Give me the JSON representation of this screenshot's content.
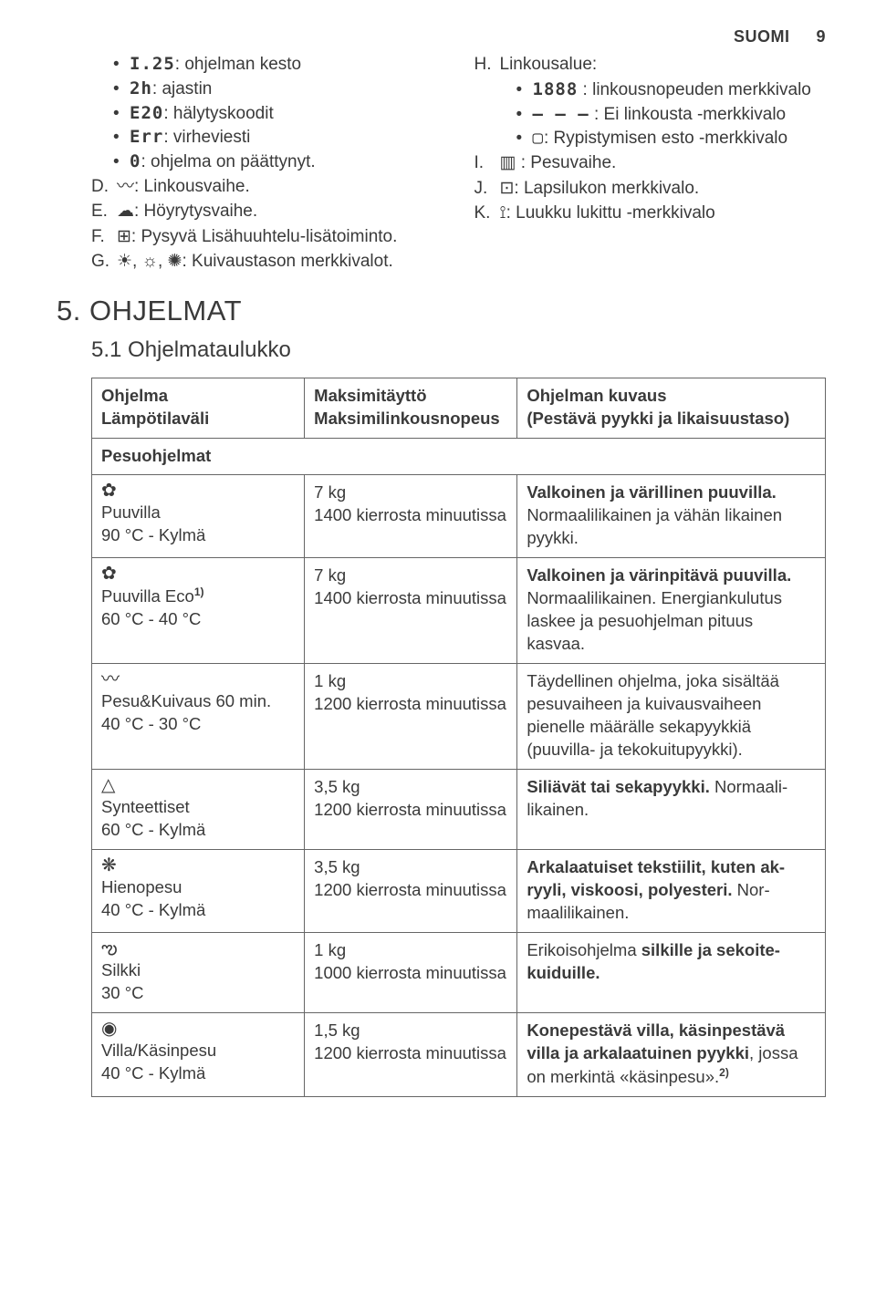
{
  "header": {
    "lang": "SUOMI",
    "page": "9"
  },
  "left_bullets": [
    {
      "icon": "I.25",
      "text": ": ohjelman kesto"
    },
    {
      "icon": "2h",
      "text": ": ajastin"
    },
    {
      "icon": "E20",
      "text": ": hälytyskoodit"
    },
    {
      "icon": "Err",
      "text": ": virheviesti"
    },
    {
      "icon": "0",
      "text": ": ohjelma on päättynyt."
    }
  ],
  "left_letters": {
    "D": {
      "icon": "〰",
      "text": ": Linkousvaihe."
    },
    "E": {
      "icon": "☁",
      "text": ": Höyrytysvaihe."
    },
    "F": {
      "icon": "⊞",
      "text": ": Pysyvä Lisähuuhtelu-lisätoiminto."
    },
    "G": {
      "icon": "☀, ☼, ✺",
      "text": ": Kuivaustason merkkivalot."
    }
  },
  "right_section": {
    "H": {
      "label": "Linkousalue:",
      "bullets": [
        {
          "icon": "1888",
          "text": " : linkousnopeuden merkkivalo"
        },
        {
          "icon": "– – –",
          "text": " : Ei linkousta -merkkivalo"
        },
        {
          "icon": "▢",
          "text": ": Rypistymisen esto -merkkivalo"
        }
      ]
    },
    "I": {
      "icon": "▥",
      "text": " : Pesuvaihe."
    },
    "J": {
      "icon": "⊡",
      "text": ": Lapsilukon merkkivalo."
    },
    "K": {
      "icon": "⟟",
      "text": ": Luukku lukittu -merkkivalo"
    }
  },
  "section_title": "5. OHJELMAT",
  "subsection_title": "5.1 Ohjelmataulukko",
  "table_headers": {
    "c1a": "Ohjelma",
    "c1b": "Lämpötilaväli",
    "c2a": "Maksimitäyttö",
    "c2b": "Maksimilinkousno­peus",
    "c3a": "Ohjelman kuvaus",
    "c3b": "(Pestävä pyykki ja likaisuustaso)"
  },
  "section_row": "Pesuohjelmat",
  "rows": [
    {
      "icon": "✿",
      "name": "Puuvilla",
      "temp": "90 °C - Kylmä",
      "cap": "7 kg\n1400 kierrosta mi­nuutissa",
      "desc_bold": "Valkoinen ja värillinen puuvilla.",
      "desc_rest": " Normaalilikainen ja vähän likainen pyykki."
    },
    {
      "icon": "✿",
      "name_html": "Puuvilla Eco<span class='sup'>1)</span>",
      "temp": "60 °C - 40 °C",
      "cap": "7 kg\n1400 kierrosta mi­nuutissa",
      "desc_bold": "Valkoinen ja värinpitävä puuvil­la.",
      "desc_rest": " Normaalilikainen. Energiankulu­tus laskee ja pesuohjelman pituus kasvaa."
    },
    {
      "icon": "〰",
      "name": "Pesu&Kuivaus 60 min.",
      "temp": "40 °C - 30 °C",
      "cap": "1 kg\n1200 kierrosta mi­nuutissa",
      "desc_plain": "Täydellinen ohjelma, joka sisältää pesuvaiheen ja kuivausvaiheen pienelle määrälle sekapyykkiä (puuvilla- ja tekokuitupyykki)."
    },
    {
      "icon": "△",
      "name": "Synteettiset",
      "temp": "60 °C - Kylmä",
      "cap": "3,5 kg\n1200 kierrosta mi­nuutissa",
      "desc_bold": "Siliävät tai sekapyykki.",
      "desc_rest": " Normaali­likainen."
    },
    {
      "icon": "❋",
      "name": "Hienopesu",
      "temp": "40 °C - Kylmä",
      "cap": "3,5 kg\n1200 kierrosta mi­nuutissa",
      "desc_bold": "Arkalaatuiset tekstiilit, kuten ak­ryyli, viskoosi, polyesteri.",
      "desc_rest": " Nor­maalilikainen."
    },
    {
      "icon": "ఌ",
      "name": "Silkki",
      "temp": "30 °C",
      "cap": "1 kg\n1000 kierrosta mi­nuutissa",
      "desc_pre": "Erikoisohjelma ",
      "desc_bold": "silkille ja sekoite­kuiduille."
    },
    {
      "icon": "◉",
      "name": "Villa/Käsinpesu",
      "temp": "40 °C - Kylmä",
      "cap": "1,5 kg\n1200 kierrosta mi­nuutissa",
      "desc_bold": "Konepestävä villa, käsinpestävä villa ja arkalaatuinen pyykki",
      "desc_rest_html": ", jos­sa on merkintä «käsinpesu».<span class='sup'>2)</span>"
    }
  ]
}
